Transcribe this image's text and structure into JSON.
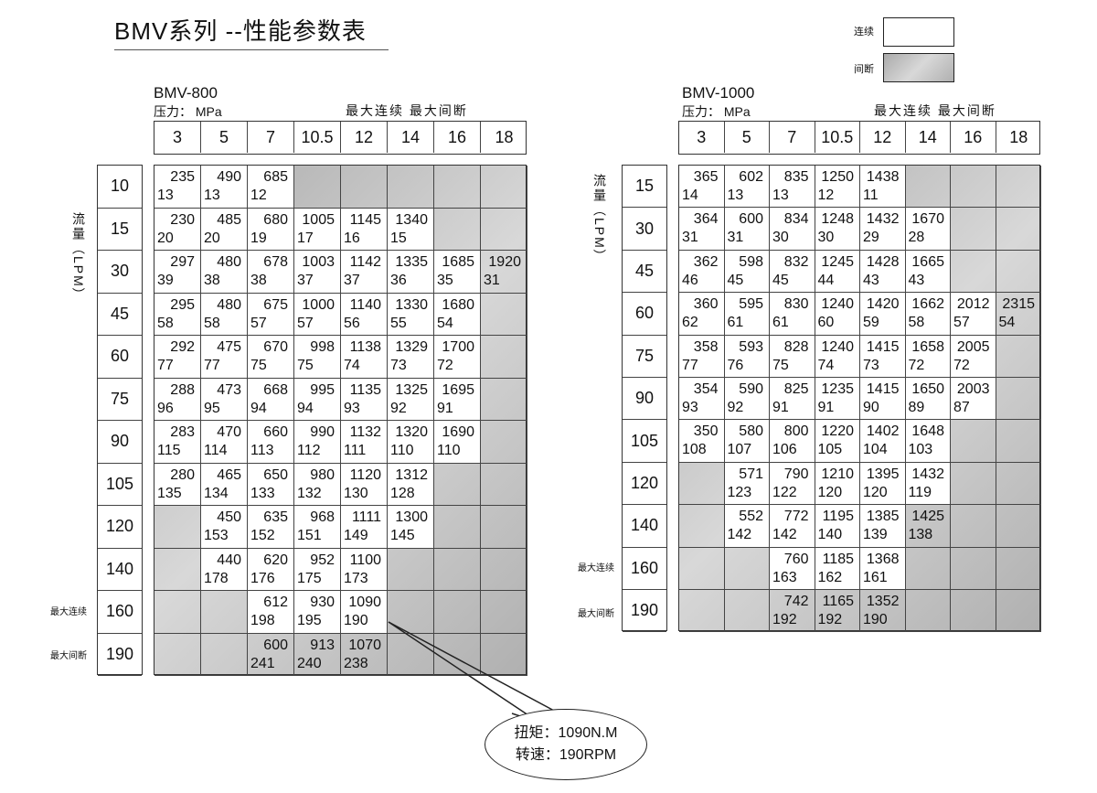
{
  "title": "BMV系列 --性能参数表",
  "legend": {
    "continuous": "连续",
    "intermittent": "间断"
  },
  "colors": {
    "continuous": "#ffffff",
    "intermittent": "#bdbdbd"
  },
  "flow_axis_label": "流量（LPM）",
  "side_labels": {
    "max_continuous": "最大连续",
    "max_intermittent": "最大间断"
  },
  "callout": {
    "torque": "扭矩：1090N.M",
    "speed": "转速：190RPM"
  },
  "tables": [
    {
      "model": "BMV-800",
      "pressure_label": "压力： MPa",
      "header_note": "最大连续  最大间断",
      "pressures": [
        "3",
        "5",
        "7",
        "10.5",
        "12",
        "14",
        "16",
        "18"
      ],
      "flows": [
        "10",
        "15",
        "30",
        "45",
        "60",
        "75",
        "90",
        "105",
        "120",
        "140",
        "160",
        "190"
      ],
      "rows": [
        [
          [
            "235",
            "13",
            "c"
          ],
          [
            "490",
            "13",
            "c"
          ],
          [
            "685",
            "12",
            "c"
          ],
          null,
          null,
          null,
          null,
          null
        ],
        [
          [
            "230",
            "20",
            "c"
          ],
          [
            "485",
            "20",
            "c"
          ],
          [
            "680",
            "19",
            "c"
          ],
          [
            "1005",
            "17",
            "c"
          ],
          [
            "1145",
            "16",
            "c"
          ],
          [
            "1340",
            "15",
            "c"
          ],
          null,
          null
        ],
        [
          [
            "297",
            "39",
            "c"
          ],
          [
            "480",
            "38",
            "c"
          ],
          [
            "678",
            "38",
            "c"
          ],
          [
            "1003",
            "37",
            "c"
          ],
          [
            "1142",
            "37",
            "c"
          ],
          [
            "1335",
            "36",
            "c"
          ],
          [
            "1685",
            "35",
            "c"
          ],
          [
            "1920",
            "31",
            "i"
          ]
        ],
        [
          [
            "295",
            "58",
            "c"
          ],
          [
            "480",
            "58",
            "c"
          ],
          [
            "675",
            "57",
            "c"
          ],
          [
            "1000",
            "57",
            "c"
          ],
          [
            "1140",
            "56",
            "c"
          ],
          [
            "1330",
            "55",
            "c"
          ],
          [
            "1680",
            "54",
            "c"
          ],
          null
        ],
        [
          [
            "292",
            "77",
            "c"
          ],
          [
            "475",
            "77",
            "c"
          ],
          [
            "670",
            "75",
            "c"
          ],
          [
            "998",
            "75",
            "c"
          ],
          [
            "1138",
            "74",
            "c"
          ],
          [
            "1329",
            "73",
            "c"
          ],
          [
            "1700",
            "72",
            "c"
          ],
          null
        ],
        [
          [
            "288",
            "96",
            "c"
          ],
          [
            "473",
            "95",
            "c"
          ],
          [
            "668",
            "94",
            "c"
          ],
          [
            "995",
            "94",
            "c"
          ],
          [
            "1135",
            "93",
            "c"
          ],
          [
            "1325",
            "92",
            "c"
          ],
          [
            "1695",
            "91",
            "c"
          ],
          null
        ],
        [
          [
            "283",
            "115",
            "c"
          ],
          [
            "470",
            "114",
            "c"
          ],
          [
            "660",
            "113",
            "c"
          ],
          [
            "990",
            "112",
            "c"
          ],
          [
            "1132",
            "111",
            "c"
          ],
          [
            "1320",
            "110",
            "c"
          ],
          [
            "1690",
            "110",
            "c"
          ],
          null
        ],
        [
          [
            "280",
            "135",
            "c"
          ],
          [
            "465",
            "134",
            "c"
          ],
          [
            "650",
            "133",
            "c"
          ],
          [
            "980",
            "132",
            "c"
          ],
          [
            "1120",
            "130",
            "c"
          ],
          [
            "1312",
            "128",
            "c"
          ],
          null,
          null
        ],
        [
          null,
          [
            "450",
            "153",
            "c"
          ],
          [
            "635",
            "152",
            "c"
          ],
          [
            "968",
            "151",
            "c"
          ],
          [
            "1111",
            "149",
            "c"
          ],
          [
            "1300",
            "145",
            "c"
          ],
          null,
          null
        ],
        [
          null,
          [
            "440",
            "178",
            "c"
          ],
          [
            "620",
            "176",
            "c"
          ],
          [
            "952",
            "175",
            "c"
          ],
          [
            "1100",
            "173",
            "c"
          ],
          null,
          null,
          null
        ],
        [
          null,
          null,
          [
            "612",
            "198",
            "c"
          ],
          [
            "930",
            "195",
            "c"
          ],
          [
            "1090",
            "190",
            "c"
          ],
          null,
          null,
          null
        ],
        [
          null,
          null,
          [
            "600",
            "241",
            "i"
          ],
          [
            "913",
            "240",
            "i"
          ],
          [
            "1070",
            "238",
            "i"
          ],
          null,
          null,
          null
        ]
      ]
    },
    {
      "model": "BMV-1000",
      "pressure_label": "压力： MPa",
      "header_note": "最大连续  最大间断",
      "pressures": [
        "3",
        "5",
        "7",
        "10.5",
        "12",
        "14",
        "16",
        "18"
      ],
      "flows": [
        "15",
        "30",
        "45",
        "60",
        "75",
        "90",
        "105",
        "120",
        "140",
        "160",
        "190"
      ],
      "rows": [
        [
          [
            "365",
            "14",
            "c"
          ],
          [
            "602",
            "13",
            "c"
          ],
          [
            "835",
            "13",
            "c"
          ],
          [
            "1250",
            "12",
            "c"
          ],
          [
            "1438",
            "11",
            "c"
          ],
          null,
          null,
          null
        ],
        [
          [
            "364",
            "31",
            "c"
          ],
          [
            "600",
            "31",
            "c"
          ],
          [
            "834",
            "30",
            "c"
          ],
          [
            "1248",
            "30",
            "c"
          ],
          [
            "1432",
            "29",
            "c"
          ],
          [
            "1670",
            "28",
            "c"
          ],
          null,
          null
        ],
        [
          [
            "362",
            "46",
            "c"
          ],
          [
            "598",
            "45",
            "c"
          ],
          [
            "832",
            "45",
            "c"
          ],
          [
            "1245",
            "44",
            "c"
          ],
          [
            "1428",
            "43",
            "c"
          ],
          [
            "1665",
            "43",
            "c"
          ],
          null,
          null
        ],
        [
          [
            "360",
            "62",
            "c"
          ],
          [
            "595",
            "61",
            "c"
          ],
          [
            "830",
            "61",
            "c"
          ],
          [
            "1240",
            "60",
            "c"
          ],
          [
            "1420",
            "59",
            "c"
          ],
          [
            "1662",
            "58",
            "c"
          ],
          [
            "2012",
            "57",
            "c"
          ],
          [
            "2315",
            "54",
            "i"
          ]
        ],
        [
          [
            "358",
            "77",
            "c"
          ],
          [
            "593",
            "76",
            "c"
          ],
          [
            "828",
            "75",
            "c"
          ],
          [
            "1240",
            "74",
            "c"
          ],
          [
            "1415",
            "73",
            "c"
          ],
          [
            "1658",
            "72",
            "c"
          ],
          [
            "2005",
            "72",
            "c"
          ],
          null
        ],
        [
          [
            "354",
            "93",
            "c"
          ],
          [
            "590",
            "92",
            "c"
          ],
          [
            "825",
            "91",
            "c"
          ],
          [
            "1235",
            "91",
            "c"
          ],
          [
            "1415",
            "90",
            "c"
          ],
          [
            "1650",
            "89",
            "c"
          ],
          [
            "2003",
            "87",
            "c"
          ],
          null
        ],
        [
          [
            "350",
            "108",
            "c"
          ],
          [
            "580",
            "107",
            "c"
          ],
          [
            "800",
            "106",
            "c"
          ],
          [
            "1220",
            "105",
            "c"
          ],
          [
            "1402",
            "104",
            "c"
          ],
          [
            "1648",
            "103",
            "c"
          ],
          null,
          null
        ],
        [
          null,
          [
            "571",
            "123",
            "c"
          ],
          [
            "790",
            "122",
            "c"
          ],
          [
            "1210",
            "120",
            "c"
          ],
          [
            "1395",
            "120",
            "c"
          ],
          [
            "1432",
            "119",
            "c"
          ],
          null,
          null
        ],
        [
          null,
          [
            "552",
            "142",
            "c"
          ],
          [
            "772",
            "142",
            "c"
          ],
          [
            "1195",
            "140",
            "c"
          ],
          [
            "1385",
            "139",
            "c"
          ],
          [
            "1425",
            "138",
            "i"
          ],
          null,
          null
        ],
        [
          null,
          null,
          [
            "760",
            "163",
            "c"
          ],
          [
            "1185",
            "162",
            "c"
          ],
          [
            "1368",
            "161",
            "c"
          ],
          null,
          null,
          null
        ],
        [
          null,
          null,
          [
            "742",
            "192",
            "i"
          ],
          [
            "1165",
            "192",
            "i"
          ],
          [
            "1352",
            "190",
            "i"
          ],
          null,
          null,
          null
        ]
      ]
    }
  ]
}
